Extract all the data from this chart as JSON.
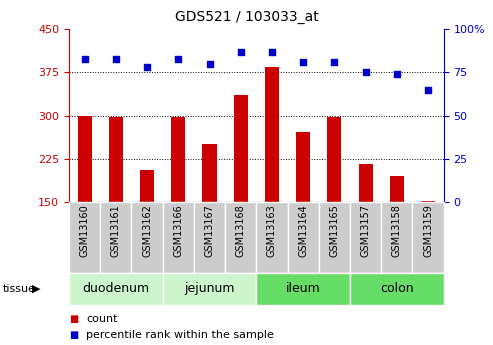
{
  "title": "GDS521 / 103033_at",
  "samples": [
    "GSM13160",
    "GSM13161",
    "GSM13162",
    "GSM13166",
    "GSM13167",
    "GSM13168",
    "GSM13163",
    "GSM13164",
    "GSM13165",
    "GSM13157",
    "GSM13158",
    "GSM13159"
  ],
  "counts": [
    300,
    297,
    205,
    297,
    250,
    335,
    385,
    272,
    297,
    215,
    195,
    152
  ],
  "percentiles": [
    83,
    83,
    78,
    83,
    80,
    87,
    87,
    81,
    81,
    75,
    74,
    65
  ],
  "tissues": [
    {
      "label": "duodenum",
      "start": 0,
      "end": 3,
      "color": "#ccf5cc"
    },
    {
      "label": "jejunum",
      "start": 3,
      "end": 6,
      "color": "#ccf5cc"
    },
    {
      "label": "ileum",
      "start": 6,
      "end": 9,
      "color": "#66dd66"
    },
    {
      "label": "colon",
      "start": 9,
      "end": 12,
      "color": "#66dd66"
    }
  ],
  "bar_color": "#cc0000",
  "dot_color": "#0000cc",
  "left_ylim": [
    150,
    450
  ],
  "left_yticks": [
    150,
    225,
    300,
    375,
    450
  ],
  "right_ylim": [
    0,
    100
  ],
  "right_yticks": [
    0,
    25,
    50,
    75,
    100
  ],
  "hlines": [
    225,
    300,
    375
  ],
  "plot_bg_color": "#ffffff",
  "left_axis_color": "#cc0000",
  "right_axis_color": "#0000cc",
  "legend_count_color": "#cc0000",
  "legend_pct_color": "#0000cc",
  "sample_box_color": "#cccccc",
  "tissue_label_fontsize": 9,
  "sample_label_fontsize": 7
}
